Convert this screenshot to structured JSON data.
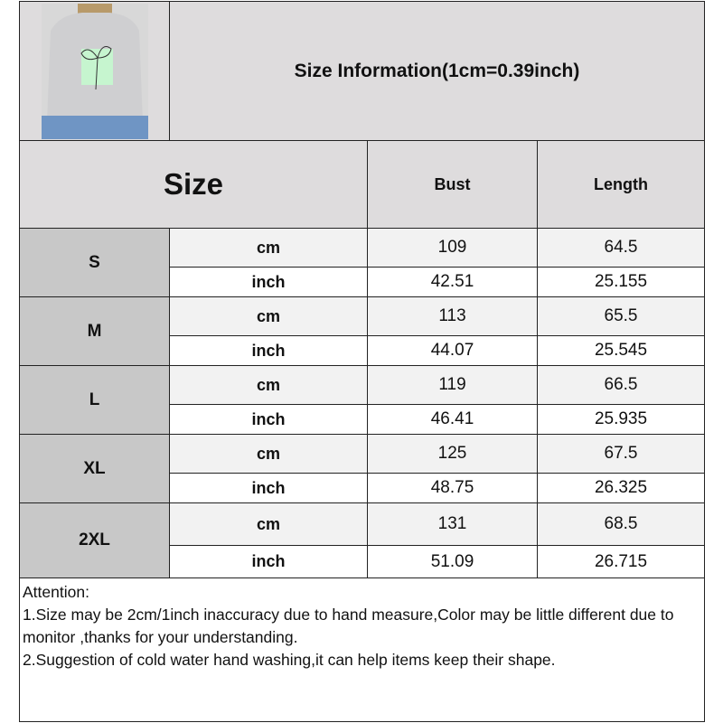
{
  "header": {
    "title": "Size Information(1cm=0.39inch)",
    "image": "sweatshirt-product-photo"
  },
  "columns": {
    "size": "Size",
    "bust": "Bust",
    "length": "Length"
  },
  "rows": [
    {
      "size": "S",
      "cm": {
        "unit": "cm",
        "bust": "109",
        "length": "64.5"
      },
      "inch": {
        "unit": "inch",
        "bust": "42.51",
        "length": "25.155"
      }
    },
    {
      "size": "M",
      "cm": {
        "unit": "cm",
        "bust": "113",
        "length": "65.5"
      },
      "inch": {
        "unit": "inch",
        "bust": "44.07",
        "length": "25.545"
      }
    },
    {
      "size": "L",
      "cm": {
        "unit": "cm",
        "bust": "119",
        "length": "66.5"
      },
      "inch": {
        "unit": "inch",
        "bust": "46.41",
        "length": "25.935"
      }
    },
    {
      "size": "XL",
      "cm": {
        "unit": "cm",
        "bust": "125",
        "length": "67.5"
      },
      "inch": {
        "unit": "inch",
        "bust": "48.75",
        "length": "26.325"
      }
    },
    {
      "size": "2XL",
      "cm": {
        "unit": "cm",
        "bust": "131",
        "length": "68.5"
      },
      "inch": {
        "unit": "inch",
        "bust": "51.09",
        "length": "26.715"
      }
    }
  ],
  "notes": {
    "heading": "Attention:",
    "line1": "1.Size may be 2cm/1inch inaccuracy due to hand measure,Color may be little different due to monitor ,thanks for your understanding.",
    "line2": "2.Suggestion of cold water hand washing,it can help items keep their shape."
  }
}
